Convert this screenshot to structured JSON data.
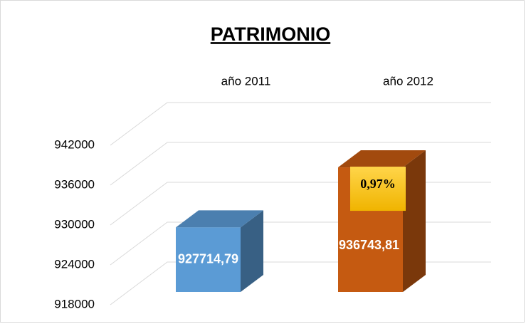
{
  "chart_data": {
    "type": "bar3d",
    "title": "PATRIMONIO",
    "categories": [
      "año 2011",
      "año 2012"
    ],
    "values": [
      927714.79,
      936743.81
    ],
    "value_labels": [
      "927714,79",
      "936743,81"
    ],
    "colors": [
      "#5b9bd5",
      "#c55a11"
    ],
    "ylim": [
      918000,
      942000
    ],
    "yticks": [
      918000,
      924000,
      930000,
      936000,
      942000
    ],
    "grid": true,
    "annotation": "0,97%"
  }
}
